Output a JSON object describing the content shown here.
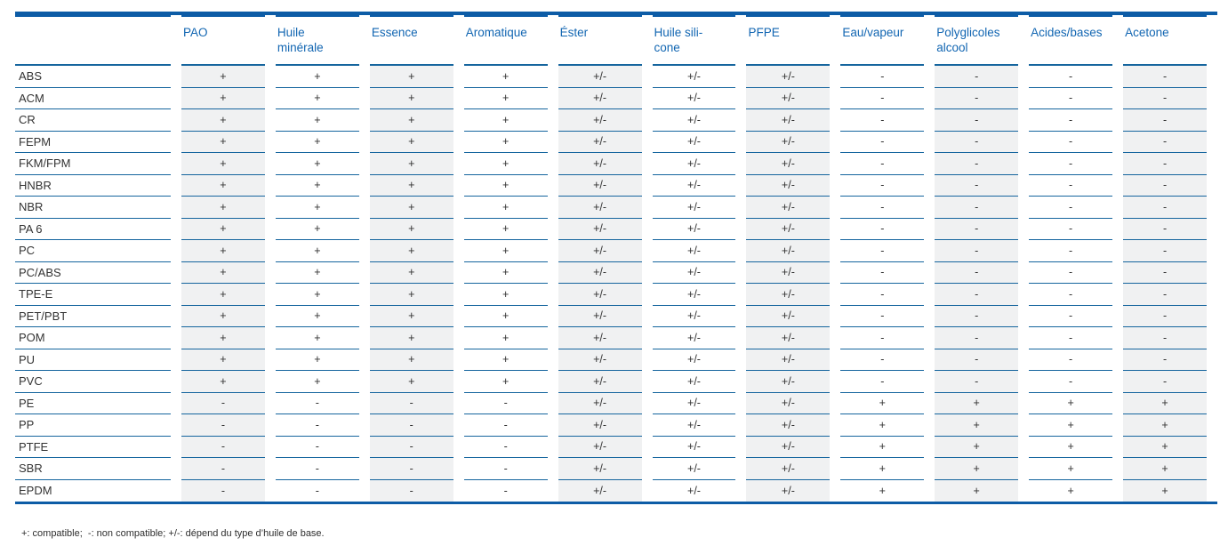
{
  "colors": {
    "brand_blue": "#0d5ca6",
    "line_blue": "#15659e",
    "header_text_blue": "#1266b2",
    "shaded_cell_bg": "#f0f1f2",
    "body_text": "#333333"
  },
  "table": {
    "corner_label": "",
    "columns": [
      "PAO",
      "Huile\nminérale",
      "Essence",
      "Aromatique",
      "Éster",
      "Huile sili-\ncone",
      "PFPE",
      "Eau/vapeur",
      "Polyglicoles\nalcool",
      "Acides/bases",
      "Acetone"
    ],
    "rows": [
      {
        "label": "ABS",
        "values": [
          "+",
          "+",
          "+",
          "+",
          "+/-",
          "+/-",
          "+/-",
          "-",
          "-",
          "-",
          "-"
        ]
      },
      {
        "label": "ACM",
        "values": [
          "+",
          "+",
          "+",
          "+",
          "+/-",
          "+/-",
          "+/-",
          "-",
          "-",
          "-",
          "-"
        ]
      },
      {
        "label": "CR",
        "values": [
          "+",
          "+",
          "+",
          "+",
          "+/-",
          "+/-",
          "+/-",
          "-",
          "-",
          "-",
          "-"
        ]
      },
      {
        "label": "FEPM",
        "values": [
          "+",
          "+",
          "+",
          "+",
          "+/-",
          "+/-",
          "+/-",
          "-",
          "-",
          "-",
          "-"
        ]
      },
      {
        "label": "FKM/FPM",
        "values": [
          "+",
          "+",
          "+",
          "+",
          "+/-",
          "+/-",
          "+/-",
          "-",
          "-",
          "-",
          "-"
        ]
      },
      {
        "label": "HNBR",
        "values": [
          "+",
          "+",
          "+",
          "+",
          "+/-",
          "+/-",
          "+/-",
          "-",
          "-",
          "-",
          "-"
        ]
      },
      {
        "label": "NBR",
        "values": [
          "+",
          "+",
          "+",
          "+",
          "+/-",
          "+/-",
          "+/-",
          "-",
          "-",
          "-",
          "-"
        ]
      },
      {
        "label": "PA 6",
        "values": [
          "+",
          "+",
          "+",
          "+",
          "+/-",
          "+/-",
          "+/-",
          "-",
          "-",
          "-",
          "-"
        ]
      },
      {
        "label": "PC",
        "values": [
          "+",
          "+",
          "+",
          "+",
          "+/-",
          "+/-",
          "+/-",
          "-",
          "-",
          "-",
          "-"
        ]
      },
      {
        "label": "PC/ABS",
        "values": [
          "+",
          "+",
          "+",
          "+",
          "+/-",
          "+/-",
          "+/-",
          "-",
          "-",
          "-",
          "-"
        ]
      },
      {
        "label": "TPE-E",
        "values": [
          "+",
          "+",
          "+",
          "+",
          "+/-",
          "+/-",
          "+/-",
          "-",
          "-",
          "-",
          "-"
        ]
      },
      {
        "label": "PET/PBT",
        "values": [
          "+",
          "+",
          "+",
          "+",
          "+/-",
          "+/-",
          "+/-",
          "-",
          "-",
          "-",
          "-"
        ]
      },
      {
        "label": "POM",
        "values": [
          "+",
          "+",
          "+",
          "+",
          "+/-",
          "+/-",
          "+/-",
          "-",
          "-",
          "-",
          "-"
        ]
      },
      {
        "label": "PU",
        "values": [
          "+",
          "+",
          "+",
          "+",
          "+/-",
          "+/-",
          "+/-",
          "-",
          "-",
          "-",
          "-"
        ]
      },
      {
        "label": "PVC",
        "values": [
          "+",
          "+",
          "+",
          "+",
          "+/-",
          "+/-",
          "+/-",
          "-",
          "-",
          "-",
          "-"
        ]
      },
      {
        "label": "PE",
        "values": [
          "-",
          "-",
          "-",
          "-",
          "+/-",
          "+/-",
          "+/-",
          "+",
          "+",
          "+",
          "+"
        ]
      },
      {
        "label": "PP",
        "values": [
          "-",
          "-",
          "-",
          "-",
          "+/-",
          "+/-",
          "+/-",
          "+",
          "+",
          "+",
          "+"
        ]
      },
      {
        "label": "PTFE",
        "values": [
          "-",
          "-",
          "-",
          "-",
          "+/-",
          "+/-",
          "+/-",
          "+",
          "+",
          "+",
          "+"
        ]
      },
      {
        "label": "SBR",
        "values": [
          "-",
          "-",
          "-",
          "-",
          "+/-",
          "+/-",
          "+/-",
          "+",
          "+",
          "+",
          "+"
        ]
      },
      {
        "label": "EPDM",
        "values": [
          "-",
          "-",
          "-",
          "-",
          "+/-",
          "+/-",
          "+/-",
          "+",
          "+",
          "+",
          "+"
        ]
      }
    ]
  },
  "legend": {
    "text": "+: compatible;  -: non compatible; +/-: dépend du type d’huile de base."
  }
}
